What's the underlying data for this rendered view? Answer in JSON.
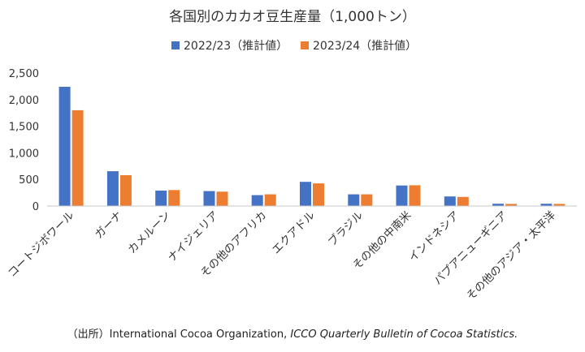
{
  "chart_data": {
    "type": "bar",
    "title": "各国別のカカオ豆生産量（1,000トン）",
    "categories": [
      "コートジボワール",
      "ガーナ",
      "カメルーン",
      "ナイジェリア",
      "その他のアフリカ",
      "エクアドル",
      "ブラジル",
      "その他の中南米",
      "インドネシア",
      "パプアニューギニア",
      "その他のアジア・太平洋"
    ],
    "series": [
      {
        "name": "2022/23（推計値）",
        "color": "#4472c4",
        "values": [
          2241,
          654,
          290,
          280,
          205,
          455,
          220,
          385,
          180,
          42,
          42
        ]
      },
      {
        "name": "2023/24（推計値）",
        "color": "#ed7d31",
        "values": [
          1800,
          580,
          300,
          270,
          220,
          425,
          220,
          390,
          170,
          40,
          40
        ]
      }
    ],
    "y_ticks": [
      "2,500",
      "2,000",
      "1,500",
      "1,000",
      "500",
      "0"
    ],
    "ylim": [
      0,
      2500
    ],
    "grid": false,
    "legend_position": "top"
  },
  "source": {
    "prefix": "（出所）International Cocoa Organization, ",
    "italic": "ICCO Quarterly Bulletin of Cocoa Statistics."
  }
}
